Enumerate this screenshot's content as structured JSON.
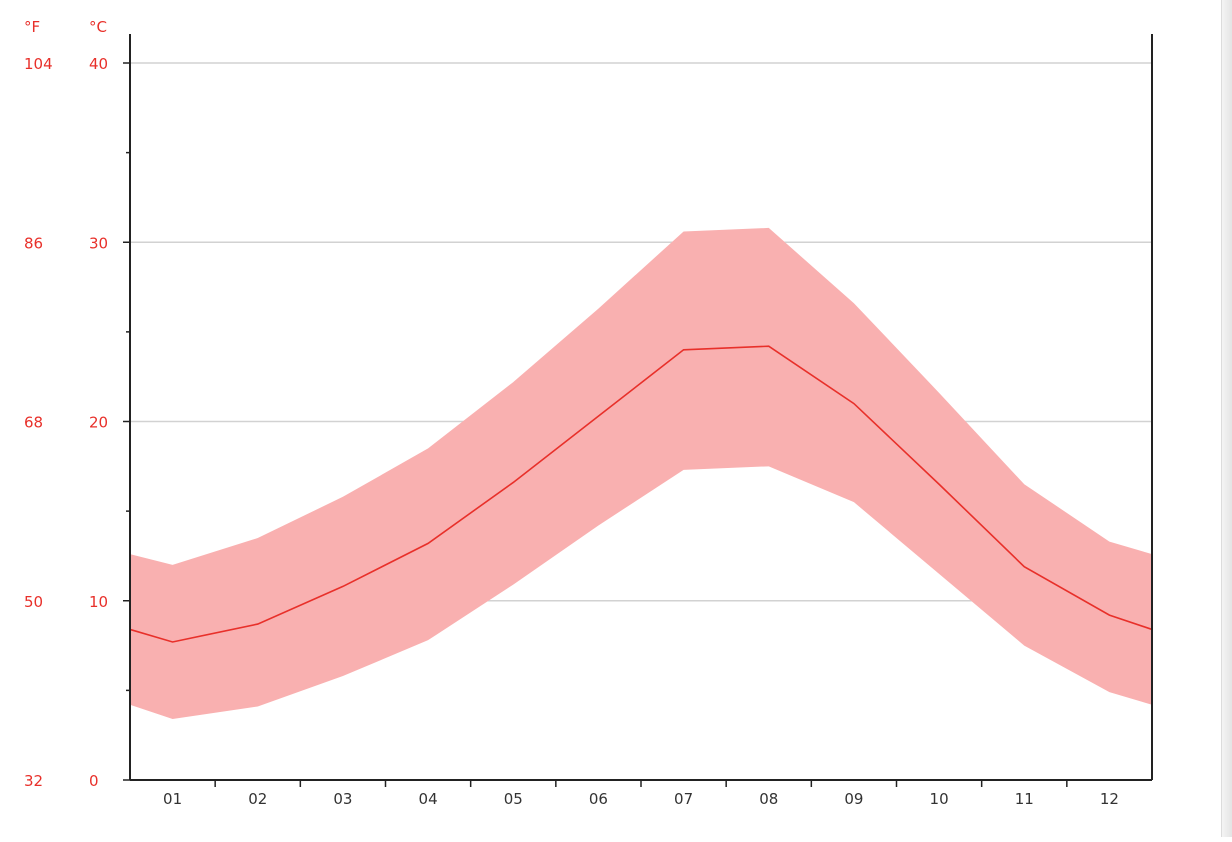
{
  "chart_data": {
    "type": "area",
    "x_unit_left": "°F",
    "y_unit_right": "°C",
    "categories": [
      "01",
      "02",
      "03",
      "04",
      "05",
      "06",
      "07",
      "08",
      "09",
      "10",
      "11",
      "12"
    ],
    "yticks_celsius": [
      "0",
      "10",
      "20",
      "30",
      "40"
    ],
    "yticks_fahrenheit": [
      "32",
      "50",
      "68",
      "86",
      "104"
    ],
    "ylim": [
      0,
      40
    ],
    "grid": true,
    "series": [
      {
        "role": "mean",
        "start": 8.4,
        "values": [
          7.7,
          8.7,
          10.8,
          13.2,
          16.6,
          20.3,
          24.0,
          24.2,
          21.0,
          16.5,
          11.9,
          9.2
        ],
        "end": 8.4
      },
      {
        "role": "max",
        "start": 12.6,
        "values": [
          12.0,
          13.5,
          15.8,
          18.5,
          22.2,
          26.3,
          30.6,
          30.8,
          26.6,
          21.6,
          16.5,
          13.3
        ],
        "end": 12.6
      },
      {
        "role": "min",
        "start": 4.2,
        "values": [
          3.4,
          4.1,
          5.8,
          7.8,
          10.9,
          14.2,
          17.3,
          17.5,
          15.5,
          11.5,
          7.5,
          4.9
        ],
        "end": 4.2
      }
    ],
    "colors": {
      "range_fill": "#f9b0b0",
      "mean_line": "#e8302a",
      "grid": "#d2d2d2",
      "axis": "#222222",
      "label": "#e8302a"
    }
  }
}
